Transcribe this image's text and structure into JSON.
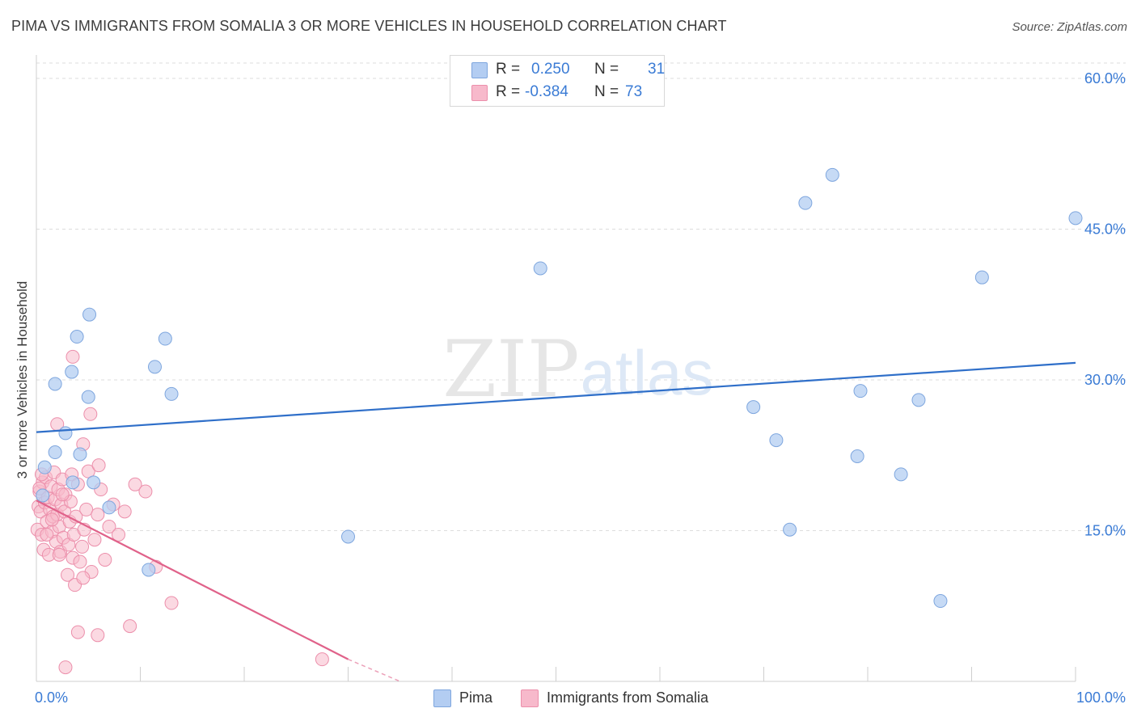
{
  "title": "PIMA VS IMMIGRANTS FROM SOMALIA 3 OR MORE VEHICLES IN HOUSEHOLD CORRELATION CHART",
  "source": "Source: ZipAtlas.com",
  "watermark": {
    "zip": "ZIP",
    "atlas": "atlas"
  },
  "colors": {
    "pima_fill": "#b3cdf2",
    "pima_stroke": "#7ea6de",
    "pima_line": "#2f6fc9",
    "somalia_fill": "#f7b9cb",
    "somalia_stroke": "#ec8fab",
    "somalia_line": "#e0628a",
    "tick_label": "#3a7bd5",
    "grid": "#dddddd"
  },
  "legend": {
    "rows": [
      {
        "series": "Pima",
        "r_label": "R =",
        "r_value": "0.250",
        "n_label": "N =",
        "n_value": "31"
      },
      {
        "series": "Immigrants from Somalia",
        "r_label": "R =",
        "r_value": "-0.384",
        "n_label": "N =",
        "n_value": "73"
      }
    ]
  },
  "chart_data": {
    "type": "scatter",
    "title": "PIMA VS IMMIGRANTS FROM SOMALIA 3 OR MORE VEHICLES IN HOUSEHOLD CORRELATION CHART",
    "xlabel": "",
    "ylabel": "3 or more Vehicles in Household",
    "xlim": [
      0,
      100
    ],
    "ylim": [
      0,
      60
    ],
    "x_tick_labels": [
      "0.0%",
      "100.0%"
    ],
    "y_ticks": [
      15,
      30,
      45,
      60
    ],
    "y_tick_labels": [
      "15.0%",
      "30.0%",
      "45.0%",
      "60.0%"
    ],
    "grid": true,
    "series": [
      {
        "name": "Pima",
        "points": [
          [
            1.8,
            22.8
          ],
          [
            0.8,
            21.3
          ],
          [
            3.5,
            19.8
          ],
          [
            4.2,
            22.6
          ],
          [
            5.5,
            19.8
          ],
          [
            7.0,
            17.3
          ],
          [
            2.8,
            24.7
          ],
          [
            1.8,
            29.6
          ],
          [
            3.4,
            30.8
          ],
          [
            5.0,
            28.3
          ],
          [
            11.4,
            31.3
          ],
          [
            13.0,
            28.6
          ],
          [
            3.9,
            34.3
          ],
          [
            5.1,
            36.5
          ],
          [
            12.4,
            34.1
          ],
          [
            10.8,
            11.1
          ],
          [
            30.0,
            14.4
          ],
          [
            48.5,
            41.1
          ],
          [
            69.0,
            27.3
          ],
          [
            71.2,
            24.0
          ],
          [
            72.5,
            15.1
          ],
          [
            74.0,
            47.6
          ],
          [
            76.6,
            50.4
          ],
          [
            79.0,
            22.4
          ],
          [
            79.3,
            28.9
          ],
          [
            83.2,
            20.6
          ],
          [
            84.9,
            28.0
          ],
          [
            87.0,
            8.0
          ],
          [
            91.0,
            40.2
          ],
          [
            100.0,
            46.1
          ],
          [
            0.6,
            18.5
          ]
        ],
        "trend": {
          "x": [
            0,
            100
          ],
          "y": [
            24.8,
            31.7
          ]
        }
      },
      {
        "name": "Immigrants from Somalia",
        "points": [
          [
            0.1,
            15.1
          ],
          [
            0.2,
            17.4
          ],
          [
            0.3,
            18.9
          ],
          [
            0.4,
            16.9
          ],
          [
            0.5,
            14.6
          ],
          [
            0.6,
            19.8
          ],
          [
            0.7,
            13.1
          ],
          [
            0.8,
            17.8
          ],
          [
            0.9,
            20.3
          ],
          [
            1.0,
            15.9
          ],
          [
            1.1,
            18.3
          ],
          [
            1.2,
            12.6
          ],
          [
            1.3,
            17.1
          ],
          [
            1.4,
            19.4
          ],
          [
            1.5,
            14.9
          ],
          [
            1.6,
            16.4
          ],
          [
            1.7,
            20.8
          ],
          [
            1.8,
            18.1
          ],
          [
            1.9,
            13.9
          ],
          [
            2.0,
            16.6
          ],
          [
            2.1,
            19.1
          ],
          [
            2.2,
            15.4
          ],
          [
            2.3,
            12.9
          ],
          [
            2.4,
            17.6
          ],
          [
            2.5,
            20.1
          ],
          [
            2.6,
            14.3
          ],
          [
            2.7,
            16.9
          ],
          [
            2.8,
            18.6
          ],
          [
            3.0,
            10.6
          ],
          [
            3.1,
            13.6
          ],
          [
            3.2,
            15.9
          ],
          [
            3.3,
            17.9
          ],
          [
            3.4,
            20.6
          ],
          [
            3.5,
            12.3
          ],
          [
            3.6,
            14.6
          ],
          [
            3.8,
            16.4
          ],
          [
            4.0,
            19.6
          ],
          [
            4.2,
            11.9
          ],
          [
            4.4,
            13.4
          ],
          [
            4.6,
            15.1
          ],
          [
            4.8,
            17.1
          ],
          [
            5.0,
            20.9
          ],
          [
            5.3,
            10.9
          ],
          [
            5.6,
            14.1
          ],
          [
            5.9,
            16.6
          ],
          [
            6.2,
            19.1
          ],
          [
            6.6,
            12.1
          ],
          [
            7.0,
            15.4
          ],
          [
            7.4,
            17.6
          ],
          [
            7.9,
            14.6
          ],
          [
            8.5,
            16.9
          ],
          [
            9.5,
            19.6
          ],
          [
            10.5,
            18.9
          ],
          [
            11.5,
            11.4
          ],
          [
            13.0,
            7.8
          ],
          [
            0.5,
            20.6
          ],
          [
            1.0,
            14.6
          ],
          [
            2.0,
            25.6
          ],
          [
            3.5,
            32.3
          ],
          [
            4.5,
            23.6
          ],
          [
            5.2,
            26.6
          ],
          [
            2.2,
            12.6
          ],
          [
            3.7,
            9.6
          ],
          [
            4.0,
            4.9
          ],
          [
            5.9,
            4.6
          ],
          [
            2.8,
            1.4
          ],
          [
            9.0,
            5.5
          ],
          [
            27.5,
            2.2
          ],
          [
            6.0,
            21.5
          ],
          [
            4.5,
            10.3
          ],
          [
            1.5,
            16.1
          ],
          [
            2.5,
            18.6
          ],
          [
            0.3,
            19.2
          ]
        ],
        "trend": {
          "x": [
            0,
            30
          ],
          "y": [
            18.0,
            2.2
          ]
        },
        "trend_dashed": {
          "x": [
            30,
            35
          ],
          "y": [
            2.2,
            0
          ]
        }
      }
    ]
  }
}
